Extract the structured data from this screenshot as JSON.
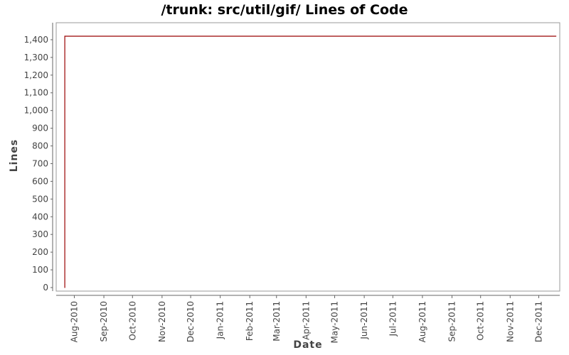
{
  "chart_data": {
    "type": "line",
    "title": "/trunk: src/util/gif/ Lines of Code",
    "xlabel": "Date",
    "ylabel": "Lines",
    "x_ticks": [
      "Aug-2010",
      "Sep-2010",
      "Oct-2010",
      "Nov-2010",
      "Dec-2010",
      "Jan-2011",
      "Feb-2011",
      "Mar-2011",
      "Apr-2011",
      "May-2011",
      "Jun-2011",
      "Jul-2011",
      "Aug-2011",
      "Sep-2011",
      "Oct-2011",
      "Nov-2011",
      "Dec-2011"
    ],
    "y_ticks": [
      "0",
      "100",
      "200",
      "300",
      "400",
      "500",
      "600",
      "700",
      "800",
      "900",
      "1,000",
      "1,100",
      "1,200",
      "1,300",
      "1,400"
    ],
    "ylim": [
      0,
      1500
    ],
    "xlim": [
      "2010-07-13",
      "2011-12-23"
    ],
    "series": [
      {
        "color": "#990000",
        "points": [
          {
            "x": "2010-07-22",
            "y": 0
          },
          {
            "x": "2010-07-22",
            "y": 1420
          },
          {
            "x": "2011-12-19",
            "y": 1420
          }
        ]
      }
    ],
    "grid": false
  }
}
